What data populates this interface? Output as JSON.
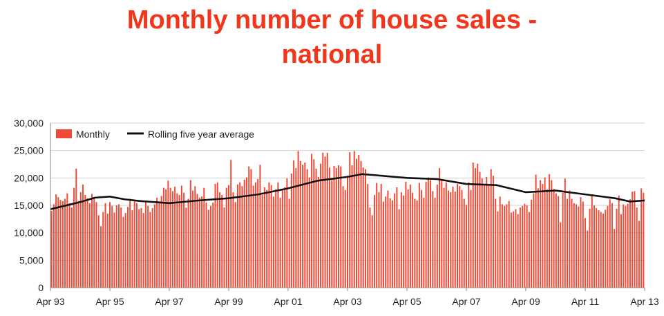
{
  "title_line1": "Monthly number of house sales -",
  "title_line2": "national",
  "colors": {
    "title": "#f2361c",
    "bars": "#ef4a37",
    "line": "#111111",
    "grid": "#cfcfcf"
  },
  "chart_data": {
    "type": "bar",
    "title": "Monthly number of house sales - national",
    "xlabel": "",
    "ylabel": "",
    "ylim": [
      0,
      30000
    ],
    "yticks": [
      "0",
      "5,000",
      "10,000",
      "15,000",
      "20,000",
      "25,000",
      "30,000"
    ],
    "xtick_labels": [
      "Apr 93",
      "Apr 95",
      "Apr 97",
      "Apr 99",
      "Apr 01",
      "Apr 03",
      "Apr 05",
      "Apr 07",
      "Apr 09",
      "Apr 11",
      "Apr 13"
    ],
    "grid": true,
    "legend_position": "top-left",
    "series": [
      {
        "name": "Monthly",
        "type": "bar",
        "start": "Apr 93",
        "values": [
          14000,
          15200,
          17000,
          16500,
          16000,
          15800,
          16200,
          17200,
          15400,
          14600,
          18200,
          21700,
          15800,
          17400,
          18800,
          16900,
          16300,
          15400,
          17100,
          16400,
          15600,
          13200,
          11200,
          13800,
          15400,
          13500,
          15600,
          14900,
          13700,
          15000,
          15200,
          14600,
          12900,
          13600,
          14700,
          16200,
          14100,
          15800,
          15400,
          14300,
          14500,
          13600,
          15900,
          14900,
          13800,
          14500,
          15200,
          16400,
          15600,
          16700,
          18200,
          17900,
          19500,
          18200,
          17600,
          18400,
          17200,
          16900,
          18600,
          17300,
          14600,
          16200,
          19600,
          17700,
          18500,
          17100,
          16400,
          16600,
          18200,
          15500,
          14200,
          14900,
          15500,
          18900,
          19200,
          17400,
          16900,
          14600,
          18200,
          18700,
          23300,
          17400,
          15600,
          18800,
          19200,
          18500,
          19700,
          20100,
          22100,
          21600,
          18600,
          19200,
          19800,
          22400,
          16900,
          18300,
          17800,
          19200,
          18700,
          16600,
          17900,
          19200,
          16400,
          17800,
          18300,
          19900,
          16200,
          20800,
          23200,
          21800,
          24900,
          23100,
          22400,
          22800,
          21600,
          20100,
          24400,
          23400,
          21700,
          20200,
          22600,
          24600,
          23900,
          24600,
          21900,
          19600,
          22200,
          21800,
          22300,
          22100,
          18500,
          17800,
          20400,
          24700,
          22300,
          24900,
          23500,
          24200,
          23100,
          21900,
          21600,
          18900,
          14600,
          13200,
          16900,
          19100,
          17400,
          18900,
          15700,
          16600,
          17700,
          16300,
          15900,
          17200,
          18300,
          14300,
          17400,
          16800,
          19300,
          17900,
          18800,
          17300,
          16200,
          15900,
          19100,
          17800,
          16400,
          19300,
          20100,
          19600,
          17600,
          16400,
          18800,
          21800,
          19600,
          18200,
          19200,
          17700,
          17400,
          18400,
          17500,
          18900,
          18500,
          17800,
          16200,
          15100,
          19200,
          17800,
          22800,
          21800,
          22600,
          21100,
          19900,
          18600,
          20200,
          18700,
          21600,
          20400,
          16200,
          13900,
          16600,
          15200,
          14900,
          15200,
          15800,
          13700,
          13900,
          14300,
          13400,
          14600,
          14900,
          15300,
          15000,
          13800,
          16000,
          17200,
          20600,
          18100,
          19600,
          18900,
          20100,
          17900,
          20700,
          19600,
          18000,
          17200,
          16700,
          11900,
          17300,
          19900,
          16200,
          17700,
          16200,
          15400,
          15200,
          14800,
          16500,
          15700,
          12700,
          10400,
          14400,
          16800,
          15000,
          14500,
          14100,
          13800,
          13500,
          14200,
          14900,
          16100,
          15400,
          10700,
          14400,
          16800,
          13400,
          15200,
          14900,
          15300,
          16100,
          17500,
          17600,
          14600,
          12200,
          18100,
          17300
        ]
      },
      {
        "name": "Rolling five year average",
        "type": "line",
        "start": "Apr 93",
        "points": [
          [
            "Apr 93",
            14300
          ],
          [
            "Apr 94",
            15600
          ],
          [
            "Oct 94",
            16400
          ],
          [
            "Apr 95",
            16600
          ],
          [
            "Oct 95",
            16100
          ],
          [
            "Apr 96",
            15800
          ],
          [
            "Apr 97",
            15400
          ],
          [
            "Apr 98",
            15900
          ],
          [
            "Apr 99",
            16300
          ],
          [
            "Apr 00",
            17000
          ],
          [
            "Apr 01",
            18100
          ],
          [
            "Apr 02",
            19500
          ],
          [
            "Apr 03",
            20200
          ],
          [
            "Oct 03",
            20700
          ],
          [
            "Apr 05",
            20000
          ],
          [
            "Apr 06",
            19800
          ],
          [
            "Apr 07",
            18900
          ],
          [
            "Apr 08",
            18700
          ],
          [
            "Apr 09",
            17400
          ],
          [
            "Apr 10",
            17700
          ],
          [
            "Apr 11",
            17000
          ],
          [
            "Apr 12",
            16300
          ],
          [
            "Oct 12",
            15700
          ],
          [
            "Apr 13",
            15900
          ]
        ]
      }
    ]
  }
}
